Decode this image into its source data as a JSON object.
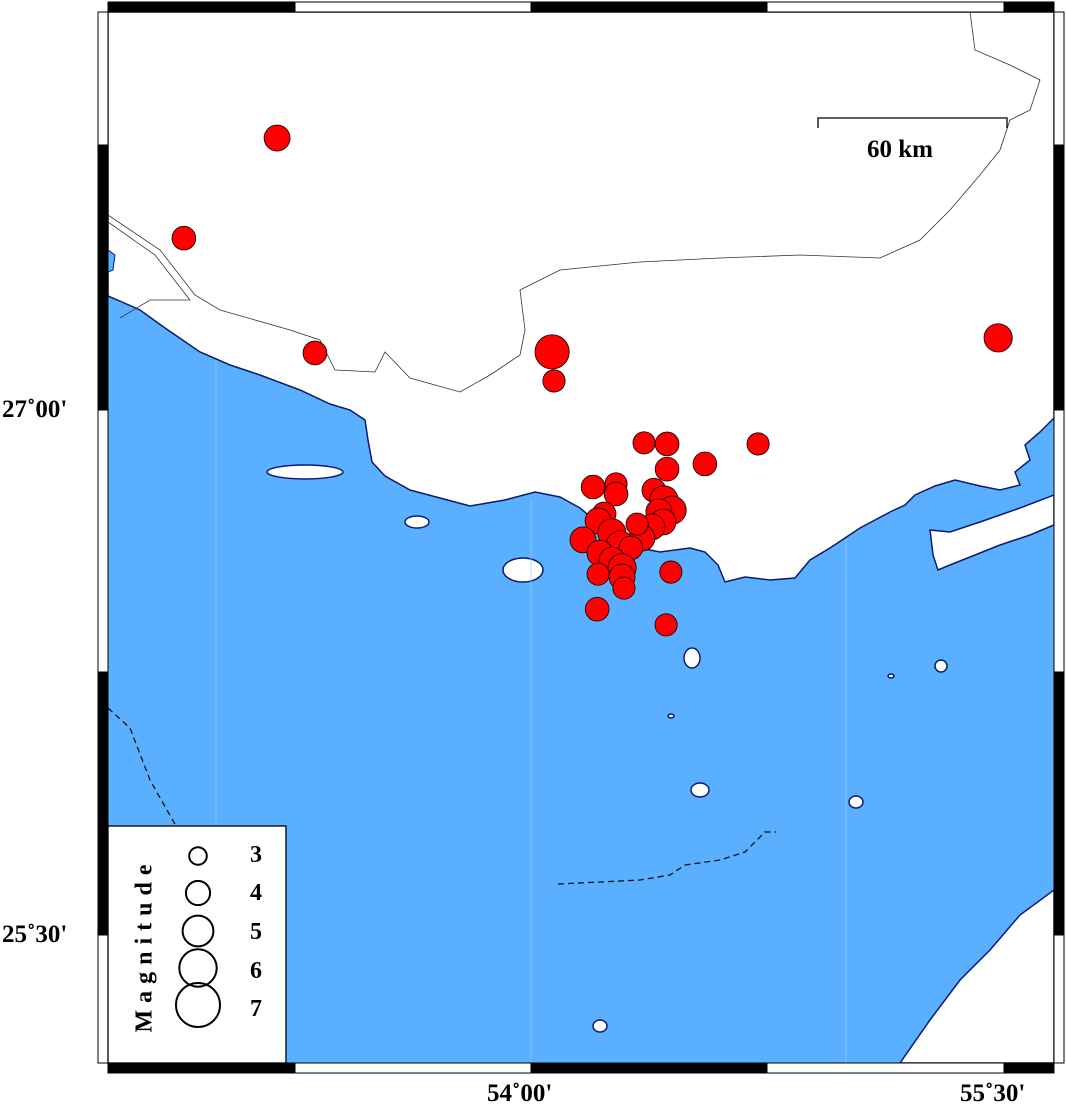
{
  "map": {
    "extent": {
      "lon": [
        52.657,
        55.66
      ],
      "lat": [
        25.134,
        28.137
      ]
    },
    "colors": {
      "sea": "#5ab0ff",
      "land": "#ffffff",
      "coastline": "#0a1a6e",
      "event": "#ff0000",
      "event_outline": "#000000"
    },
    "lat_ticks": [
      {
        "value": 27.0,
        "label": "27˚00'"
      },
      {
        "value": 25.5,
        "label": "25˚30'"
      }
    ],
    "lon_ticks": [
      {
        "value": 54.0,
        "label": "54˚00'"
      },
      {
        "value": 55.5,
        "label": "55˚30'"
      }
    ],
    "scale_bar": {
      "label": "60 km"
    },
    "legend": {
      "title": "Magnitude",
      "sizes": [
        {
          "label": "3",
          "m": 3
        },
        {
          "label": "4",
          "m": 4
        },
        {
          "label": "5",
          "m": 5
        },
        {
          "label": "6",
          "m": 6
        },
        {
          "label": "7",
          "m": 7
        }
      ]
    }
  },
  "events": [
    {
      "lon": 53.194,
      "lat": 27.777,
      "m": 3.8
    },
    {
      "lon": 52.898,
      "lat": 27.491,
      "m": 3.5
    },
    {
      "lon": 53.314,
      "lat": 27.163,
      "m": 3.5
    },
    {
      "lon": 54.067,
      "lat": 27.166,
      "m": 4.9
    },
    {
      "lon": 54.073,
      "lat": 27.083,
      "m": 3.3
    },
    {
      "lon": 55.483,
      "lat": 27.206,
      "m": 4.1
    },
    {
      "lon": 54.359,
      "lat": 26.906,
      "m": 3.3
    },
    {
      "lon": 54.432,
      "lat": 26.903,
      "m": 3.5
    },
    {
      "lon": 54.721,
      "lat": 26.903,
      "m": 3.3
    },
    {
      "lon": 54.552,
      "lat": 26.846,
      "m": 3.5
    },
    {
      "lon": 54.432,
      "lat": 26.831,
      "m": 3.5
    },
    {
      "lon": 54.197,
      "lat": 26.78,
      "m": 3.5
    },
    {
      "lon": 54.27,
      "lat": 26.789,
      "m": 3.3
    },
    {
      "lon": 54.27,
      "lat": 26.76,
      "m": 3.5
    },
    {
      "lon": 54.39,
      "lat": 26.771,
      "m": 3.5
    },
    {
      "lon": 54.422,
      "lat": 26.743,
      "m": 4.1
    },
    {
      "lon": 54.448,
      "lat": 26.714,
      "m": 4.1
    },
    {
      "lon": 54.406,
      "lat": 26.709,
      "m": 3.8
    },
    {
      "lon": 54.232,
      "lat": 26.703,
      "m": 3.5
    },
    {
      "lon": 54.213,
      "lat": 26.683,
      "m": 3.8
    },
    {
      "lon": 54.419,
      "lat": 26.68,
      "m": 3.8
    },
    {
      "lon": 54.384,
      "lat": 26.666,
      "m": 3.8
    },
    {
      "lon": 54.257,
      "lat": 26.649,
      "m": 4.1
    },
    {
      "lon": 54.165,
      "lat": 26.629,
      "m": 3.8
    },
    {
      "lon": 54.352,
      "lat": 26.634,
      "m": 3.8
    },
    {
      "lon": 54.337,
      "lat": 26.674,
      "m": 3.3
    },
    {
      "lon": 54.283,
      "lat": 26.614,
      "m": 4.1
    },
    {
      "lon": 54.219,
      "lat": 26.591,
      "m": 3.8
    },
    {
      "lon": 54.317,
      "lat": 26.606,
      "m": 3.5
    },
    {
      "lon": 54.257,
      "lat": 26.571,
      "m": 3.8
    },
    {
      "lon": 54.289,
      "lat": 26.549,
      "m": 4.1
    },
    {
      "lon": 54.213,
      "lat": 26.531,
      "m": 3.3
    },
    {
      "lon": 54.289,
      "lat": 26.523,
      "m": 3.8
    },
    {
      "lon": 54.295,
      "lat": 26.491,
      "m": 3.3
    },
    {
      "lon": 54.444,
      "lat": 26.537,
      "m": 3.3
    },
    {
      "lon": 54.21,
      "lat": 26.431,
      "m": 3.5
    },
    {
      "lon": 54.429,
      "lat": 26.386,
      "m": 3.3
    }
  ]
}
